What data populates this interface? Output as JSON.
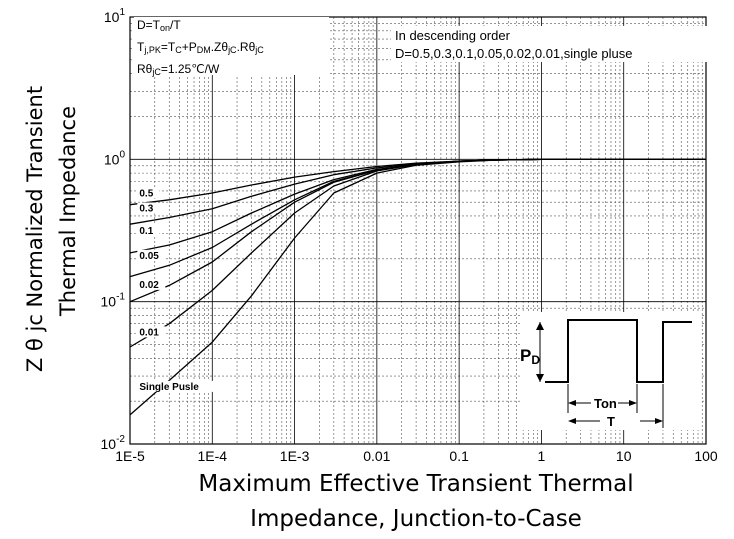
{
  "chart_data": {
    "type": "line",
    "x_scale": "log",
    "y_scale": "log",
    "xlim": [
      1e-05,
      100
    ],
    "ylim": [
      0.01,
      10
    ],
    "grid": true,
    "ylabel_line1": "Z θ jc   Normalized Transient",
    "ylabel_line2": "Thermal   Impedance",
    "xlabel_line1": "Maximum Effective Transient Thermal",
    "xlabel_line2": "Impedance, Junction-to-Case",
    "x_tick_labels": [
      "1E-5",
      "1E-4",
      "1E-3",
      "0.01",
      "0.1",
      "1",
      "10",
      "100"
    ],
    "x_ticks": [
      1e-05,
      0.0001,
      0.001,
      0.01,
      0.1,
      1,
      10,
      100
    ],
    "y_ticks": [
      0.01,
      0.1,
      1,
      10
    ],
    "y_tick_labels": [
      {
        "base": "10",
        "exp": "-2"
      },
      {
        "base": "10",
        "exp": "-1"
      },
      {
        "base": "10",
        "exp": "0"
      },
      {
        "base": "10",
        "exp": "1"
      }
    ],
    "annotations_left": [
      "D=Ton/T",
      "Tj,PK=Tc+PDM.Zθjc.Rθjc",
      "Rθjc=1.25℃/W"
    ],
    "annotations_right": [
      "In descending order",
      "D=0.5,0.3,0.1,0.05,0.02,0.01,single pluse"
    ],
    "series": [
      {
        "name": "0.5",
        "label_x": 1.3e-05,
        "label_y": 0.55,
        "x": [
          1e-05,
          3e-05,
          0.0001,
          0.0003,
          0.001,
          0.003,
          0.01,
          0.03,
          0.1,
          0.3,
          1,
          3,
          10,
          100
        ],
        "y": [
          0.48,
          0.52,
          0.58,
          0.66,
          0.75,
          0.82,
          0.89,
          0.94,
          0.97,
          0.99,
          1.0,
          1.0,
          1.0,
          1.0
        ]
      },
      {
        "name": "0.3",
        "label_x": 1.3e-05,
        "label_y": 0.43,
        "x": [
          1e-05,
          3e-05,
          0.0001,
          0.0003,
          0.001,
          0.003,
          0.01,
          0.03,
          0.1,
          0.3,
          1,
          3,
          10,
          100
        ],
        "y": [
          0.35,
          0.39,
          0.45,
          0.55,
          0.67,
          0.78,
          0.87,
          0.93,
          0.97,
          0.99,
          1.0,
          1.0,
          1.0,
          1.0
        ]
      },
      {
        "name": "0.1",
        "label_x": 1.3e-05,
        "label_y": 0.3,
        "x": [
          1e-05,
          3e-05,
          0.0001,
          0.0003,
          0.001,
          0.003,
          0.01,
          0.03,
          0.1,
          0.3,
          1,
          3,
          10,
          100
        ],
        "y": [
          0.22,
          0.25,
          0.31,
          0.42,
          0.57,
          0.72,
          0.85,
          0.92,
          0.97,
          0.99,
          1.0,
          1.0,
          1.0,
          1.0
        ]
      },
      {
        "name": "0.05",
        "label_x": 1.3e-05,
        "label_y": 0.2,
        "x": [
          1e-05,
          3e-05,
          0.0001,
          0.0003,
          0.001,
          0.003,
          0.01,
          0.03,
          0.1,
          0.3,
          1,
          3,
          10,
          100
        ],
        "y": [
          0.15,
          0.18,
          0.24,
          0.35,
          0.52,
          0.7,
          0.84,
          0.92,
          0.97,
          0.99,
          1.0,
          1.0,
          1.0,
          1.0
        ]
      },
      {
        "name": "0.02",
        "label_x": 1.3e-05,
        "label_y": 0.125,
        "x": [
          1e-05,
          3e-05,
          0.0001,
          0.0003,
          0.001,
          0.003,
          0.01,
          0.03,
          0.1,
          0.3,
          1,
          3,
          10,
          100
        ],
        "y": [
          0.1,
          0.13,
          0.19,
          0.31,
          0.5,
          0.69,
          0.84,
          0.92,
          0.97,
          0.99,
          1.0,
          1.0,
          1.0,
          1.0
        ]
      },
      {
        "name": "0.01",
        "label_x": 1.3e-05,
        "label_y": 0.058,
        "x": [
          1e-05,
          3e-05,
          0.0001,
          0.0003,
          0.001,
          0.003,
          0.01,
          0.03,
          0.1,
          0.3,
          1,
          3,
          10,
          100
        ],
        "y": [
          0.048,
          0.07,
          0.12,
          0.22,
          0.42,
          0.65,
          0.83,
          0.92,
          0.97,
          0.99,
          1.0,
          1.0,
          1.0,
          1.0
        ]
      },
      {
        "name": "Single Pusle",
        "label_x": 1.3e-05,
        "label_y": 0.024,
        "x": [
          1e-05,
          3e-05,
          0.0001,
          0.0003,
          0.001,
          0.003,
          0.01,
          0.03,
          0.1,
          0.3,
          1,
          3,
          10,
          100
        ],
        "y": [
          0.016,
          0.028,
          0.052,
          0.11,
          0.28,
          0.58,
          0.8,
          0.91,
          0.96,
          0.99,
          1.0,
          1.0,
          1.0,
          1.0
        ]
      }
    ],
    "waveform_labels": {
      "pd": "P",
      "pd_sub": "D",
      "ton": "Ton",
      "t": "T"
    }
  }
}
